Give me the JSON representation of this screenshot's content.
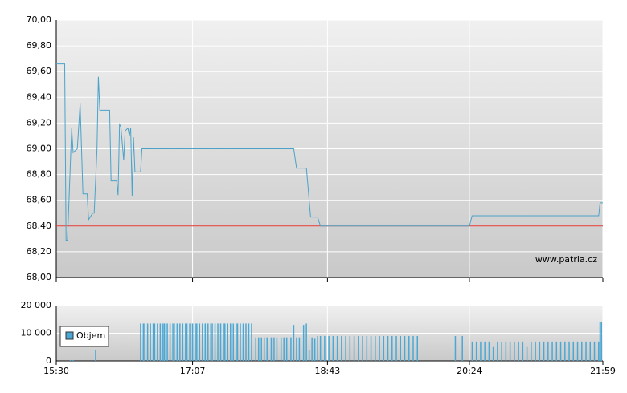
{
  "chart_data": [
    {
      "type": "line",
      "watermark": "www.patria.cz",
      "x": [
        930,
        936,
        937,
        938,
        941,
        942,
        945,
        947,
        949,
        952,
        953,
        956,
        957,
        959,
        960,
        961,
        968,
        969,
        973,
        974,
        975,
        976,
        978,
        979,
        981,
        982,
        983,
        984,
        985,
        986,
        990,
        991,
        1099,
        1101,
        1108,
        1111,
        1116,
        1118,
        1224,
        1226,
        1316,
        1317,
        1319
      ],
      "values": [
        69.66,
        69.66,
        68.29,
        68.29,
        69.16,
        68.97,
        69.0,
        69.35,
        68.65,
        68.65,
        68.45,
        68.5,
        68.5,
        69.0,
        69.56,
        69.3,
        69.3,
        68.75,
        68.75,
        68.64,
        69.19,
        69.17,
        68.91,
        69.14,
        69.16,
        69.1,
        69.16,
        68.63,
        69.09,
        68.82,
        68.82,
        69.0,
        69.0,
        68.85,
        68.85,
        68.47,
        68.47,
        68.4,
        68.4,
        68.48,
        68.48,
        68.58,
        68.58
      ],
      "color": "#4ba3c9",
      "reference_line": 68.4,
      "reference_color": "#e0302a",
      "xlim": [
        930,
        1319
      ],
      "ylim": [
        68,
        70
      ],
      "yticks": [
        {
          "value": 68,
          "label": "68,00"
        },
        {
          "value": 68.2,
          "label": "68,20"
        },
        {
          "value": 68.4,
          "label": "68,40"
        },
        {
          "value": 68.6,
          "label": "68,60"
        },
        {
          "value": 68.8,
          "label": "68,80"
        },
        {
          "value": 69,
          "label": "69,00"
        },
        {
          "value": 69.2,
          "label": "69,20"
        },
        {
          "value": 69.4,
          "label": "69,40"
        },
        {
          "value": 69.6,
          "label": "69,60"
        },
        {
          "value": 69.8,
          "label": "69,80"
        },
        {
          "value": 70,
          "label": "70,00"
        }
      ],
      "grid": true
    },
    {
      "type": "bar",
      "x": [
        940,
        942,
        958,
        990,
        992,
        993,
        995,
        997,
        999,
        1000,
        1002,
        1004,
        1006,
        1007,
        1009,
        1011,
        1013,
        1014,
        1016,
        1018,
        1020,
        1022,
        1023,
        1025,
        1027,
        1029,
        1030,
        1032,
        1034,
        1036,
        1038,
        1040,
        1041,
        1043,
        1045,
        1047,
        1049,
        1050,
        1052,
        1054,
        1056,
        1058,
        1059,
        1061,
        1063,
        1065,
        1067,
        1069,
        1072,
        1074,
        1076,
        1078,
        1080,
        1083,
        1085,
        1087,
        1090,
        1092,
        1094,
        1097,
        1099,
        1101,
        1103,
        1106,
        1108,
        1110,
        1112,
        1114,
        1116,
        1118,
        1121,
        1124,
        1127,
        1130,
        1133,
        1136,
        1139,
        1142,
        1145,
        1148,
        1151,
        1154,
        1157,
        1160,
        1163,
        1166,
        1169,
        1172,
        1175,
        1178,
        1181,
        1184,
        1187,
        1214,
        1219,
        1226,
        1229,
        1232,
        1235,
        1238,
        1241,
        1244,
        1247,
        1250,
        1253,
        1256,
        1259,
        1262,
        1265,
        1268,
        1271,
        1274,
        1277,
        1280,
        1283,
        1286,
        1289,
        1292,
        1295,
        1298,
        1301,
        1304,
        1307,
        1310,
        1313,
        1316,
        1317,
        1318
      ],
      "series": [
        {
          "name": "Objem",
          "color": "#4ba8d4",
          "values": [
            300,
            300,
            3900,
            13500,
            13500,
            13500,
            13500,
            13500,
            13500,
            13500,
            13500,
            13500,
            13500,
            13500,
            13500,
            13500,
            13500,
            13500,
            13500,
            13500,
            13500,
            13500,
            13500,
            13500,
            13500,
            13500,
            13500,
            13500,
            13500,
            13500,
            13500,
            13500,
            13500,
            13500,
            13500,
            13500,
            13500,
            13500,
            13500,
            13500,
            13500,
            13500,
            13500,
            13500,
            13500,
            13500,
            13500,
            13500,
            8500,
            8500,
            8500,
            8500,
            8500,
            8500,
            8500,
            8500,
            8500,
            8500,
            8500,
            8500,
            13000,
            8500,
            8500,
            13000,
            13500,
            4000,
            8500,
            8000,
            9000,
            9000,
            9000,
            9000,
            9000,
            9000,
            9000,
            9000,
            9000,
            9000,
            9000,
            9000,
            9000,
            9000,
            9000,
            9000,
            9000,
            9000,
            9000,
            9000,
            9000,
            9000,
            9000,
            9000,
            9000,
            9000,
            9000,
            7000,
            7000,
            7000,
            7000,
            7000,
            5000,
            7000,
            7000,
            7000,
            7000,
            7000,
            7000,
            7000,
            5000,
            7000,
            7000,
            7000,
            7000,
            7000,
            7000,
            7000,
            7000,
            7000,
            7000,
            7000,
            7000,
            7000,
            7000,
            7000,
            7000,
            7000,
            14000,
            14000
          ]
        }
      ],
      "legend": "left",
      "xlim": [
        930,
        1319
      ],
      "xticks": [
        {
          "value": 930,
          "label": "15:30"
        },
        {
          "value": 1027,
          "label": "17:07"
        },
        {
          "value": 1123,
          "label": "18:43"
        },
        {
          "value": 1224,
          "label": "20:24"
        },
        {
          "value": 1319,
          "label": "21:59"
        }
      ],
      "ylim": [
        0,
        20000
      ],
      "yticks": [
        0,
        {
          "value": 10000,
          "label": "10 000"
        },
        {
          "value": 20000,
          "label": "20 000"
        }
      ],
      "grid": true
    }
  ]
}
